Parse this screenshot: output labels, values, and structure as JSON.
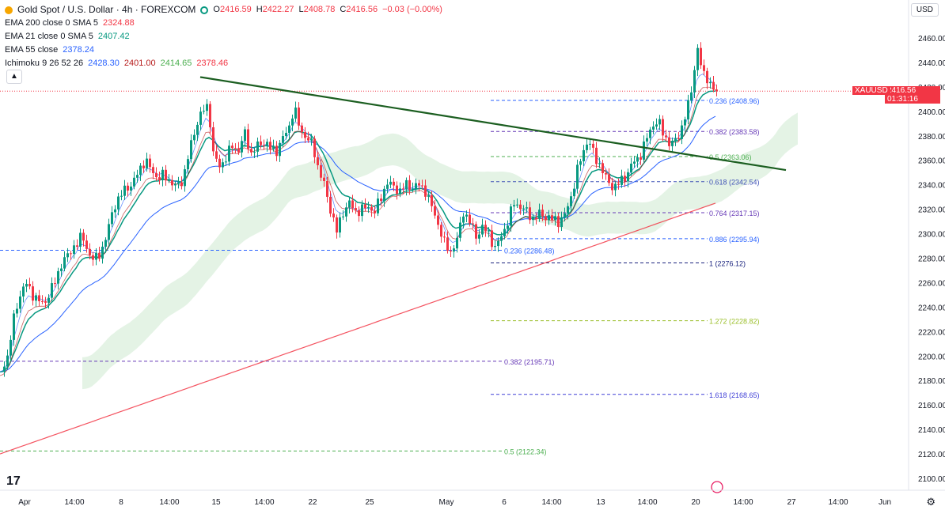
{
  "header": {
    "symbol_title": "Gold Spot / U.S. Dollar · 4h · FOREXCOM",
    "ohlc": {
      "o_label": "O",
      "o": "2416.59",
      "h_label": "H",
      "h": "2422.27",
      "l_label": "L",
      "l": "2408.78",
      "c_label": "C",
      "c": "2416.56",
      "change": "−0.03 (−0.00%)"
    }
  },
  "indicators": [
    {
      "label": "EMA 200 close 0 SMA 5",
      "value": "2324.88",
      "color": "#f23645"
    },
    {
      "label": "EMA 21 close 0 SMA 5",
      "value": "2407.42",
      "color": "#089981"
    },
    {
      "label": "EMA 55 close",
      "value": "2378.24",
      "color": "#2962ff"
    },
    {
      "label": "Ichimoku 9 26 52 26",
      "values": [
        "2428.30",
        "2401.00",
        "2414.65",
        "2378.46"
      ],
      "colors": [
        "#2962ff",
        "#b71c1c",
        "#4caf50",
        "#f23645"
      ]
    }
  ],
  "currency_button": "USD",
  "collapse_icon": "chevron-up-icon",
  "logo_text": "17",
  "price_tag": {
    "symbol": "XAUUSD",
    "price": "2416.56",
    "countdown": "01:31:16"
  },
  "chart_data": {
    "type": "candlestick",
    "y_axis": {
      "min": 2100,
      "max": 2460,
      "ticks": [
        "2460.00",
        "2440.00",
        "2420.00",
        "2400.00",
        "2380.00",
        "2360.00",
        "2340.00",
        "2320.00",
        "2300.00",
        "2280.00",
        "2260.00",
        "2240.00",
        "2220.00",
        "2200.00",
        "2180.00",
        "2160.00",
        "2140.00",
        "2120.00",
        "2100.00"
      ]
    },
    "x_axis": {
      "ticks": [
        "Apr",
        "14:00",
        "8",
        "14:00",
        "15",
        "14:00",
        "22",
        "25",
        "May",
        "6",
        "14:00",
        "13",
        "14:00",
        "20",
        "14:00",
        "27",
        "14:00",
        "Jun"
      ]
    },
    "candles_anchor": [
      [
        0,
        2185
      ],
      [
        8,
        2200
      ],
      [
        14,
        2225
      ],
      [
        22,
        2245
      ],
      [
        30,
        2262
      ],
      [
        38,
        2250
      ],
      [
        46,
        2248
      ],
      [
        54,
        2240
      ],
      [
        62,
        2255
      ],
      [
        70,
        2262
      ],
      [
        78,
        2280
      ],
      [
        86,
        2282
      ],
      [
        94,
        2292
      ],
      [
        102,
        2298
      ],
      [
        110,
        2285
      ],
      [
        118,
        2278
      ],
      [
        126,
        2285
      ],
      [
        134,
        2300
      ],
      [
        142,
        2322
      ],
      [
        150,
        2330
      ],
      [
        158,
        2338
      ],
      [
        166,
        2340
      ],
      [
        174,
        2352
      ],
      [
        182,
        2360
      ],
      [
        190,
        2352
      ],
      [
        198,
        2345
      ],
      [
        206,
        2348
      ],
      [
        214,
        2342
      ],
      [
        222,
        2338
      ],
      [
        230,
        2345
      ],
      [
        238,
        2368
      ],
      [
        246,
        2388
      ],
      [
        254,
        2400
      ],
      [
        262,
        2405
      ],
      [
        268,
        2365
      ],
      [
        276,
        2355
      ],
      [
        284,
        2362
      ],
      [
        292,
        2372
      ],
      [
        300,
        2368
      ],
      [
        308,
        2382
      ],
      [
        316,
        2365
      ],
      [
        324,
        2372
      ],
      [
        332,
        2375
      ],
      [
        340,
        2370
      ],
      [
        348,
        2368
      ],
      [
        356,
        2378
      ],
      [
        364,
        2388
      ],
      [
        370,
        2403
      ],
      [
        378,
        2385
      ],
      [
        386,
        2378
      ],
      [
        394,
        2372
      ],
      [
        400,
        2355
      ],
      [
        408,
        2340
      ],
      [
        416,
        2320
      ],
      [
        424,
        2302
      ],
      [
        432,
        2318
      ],
      [
        440,
        2325
      ],
      [
        448,
        2318
      ],
      [
        456,
        2320
      ],
      [
        464,
        2322
      ],
      [
        472,
        2318
      ],
      [
        480,
        2330
      ],
      [
        488,
        2342
      ],
      [
        496,
        2338
      ],
      [
        504,
        2335
      ],
      [
        512,
        2340
      ],
      [
        520,
        2338
      ],
      [
        528,
        2340
      ],
      [
        536,
        2335
      ],
      [
        544,
        2322
      ],
      [
        552,
        2308
      ],
      [
        560,
        2292
      ],
      [
        568,
        2285
      ],
      [
        576,
        2295
      ],
      [
        584,
        2318
      ],
      [
        592,
        2310
      ],
      [
        600,
        2298
      ],
      [
        608,
        2305
      ],
      [
        616,
        2300
      ],
      [
        624,
        2288
      ],
      [
        632,
        2298
      ],
      [
        640,
        2310
      ],
      [
        648,
        2325
      ],
      [
        656,
        2322
      ],
      [
        664,
        2318
      ],
      [
        672,
        2312
      ],
      [
        680,
        2316
      ],
      [
        688,
        2314
      ],
      [
        696,
        2312
      ],
      [
        704,
        2310
      ],
      [
        712,
        2315
      ],
      [
        720,
        2330
      ],
      [
        728,
        2352
      ],
      [
        736,
        2368
      ],
      [
        742,
        2378
      ],
      [
        750,
        2362
      ],
      [
        758,
        2355
      ],
      [
        766,
        2342
      ],
      [
        774,
        2338
      ],
      [
        782,
        2342
      ],
      [
        790,
        2348
      ],
      [
        798,
        2358
      ],
      [
        806,
        2362
      ],
      [
        814,
        2375
      ],
      [
        822,
        2388
      ],
      [
        830,
        2392
      ],
      [
        838,
        2380
      ],
      [
        846,
        2372
      ],
      [
        854,
        2378
      ],
      [
        862,
        2390
      ],
      [
        870,
        2410
      ],
      [
        876,
        2435
      ],
      [
        880,
        2450
      ],
      [
        886,
        2432
      ],
      [
        892,
        2428
      ],
      [
        898,
        2418
      ],
      [
        904,
        2416
      ]
    ],
    "trendline": {
      "from": [
        0,
        2428
      ],
      "to": [
        1,
        2352
      ]
    },
    "fib_levels_right": [
      {
        "ratio": "0.236",
        "value": "(2408.96)",
        "price": 2408.96,
        "color": "#2962ff"
      },
      {
        "ratio": "0.382",
        "value": "(2383.58)",
        "price": 2383.58,
        "color": "#673ab7"
      },
      {
        "ratio": "0.5",
        "value": "(2363.06)",
        "price": 2363.06,
        "color": "#4caf50"
      },
      {
        "ratio": "0.618",
        "value": "(2342.54)",
        "price": 2342.54,
        "color": "#3f51b5"
      },
      {
        "ratio": "0.764",
        "value": "(2317.15)",
        "price": 2317.15,
        "color": "#673ab7"
      },
      {
        "ratio": "0.886",
        "value": "(2295.94)",
        "price": 2295.94,
        "color": "#2962ff"
      },
      {
        "ratio": "1",
        "value": "(2276.12)",
        "price": 2276.12,
        "color": "#1a237e"
      },
      {
        "ratio": "1.272",
        "value": "(2228.82)",
        "price": 2228.82,
        "color": "#9bbf2a"
      },
      {
        "ratio": "1.618",
        "value": "(2168.65)",
        "price": 2168.65,
        "color": "#3f3fd6"
      }
    ],
    "fib_levels_left": [
      {
        "ratio": "0.236",
        "value": "(2286.48)",
        "price": 2286.48,
        "color": "#2962ff"
      },
      {
        "ratio": "0.382",
        "value": "(2195.71)",
        "price": 2195.71,
        "color": "#673ab7"
      },
      {
        "ratio": "0.5",
        "value": "(2122.34)",
        "price": 2122.34,
        "color": "#4caf50"
      }
    ],
    "current_price": 2416.56
  }
}
